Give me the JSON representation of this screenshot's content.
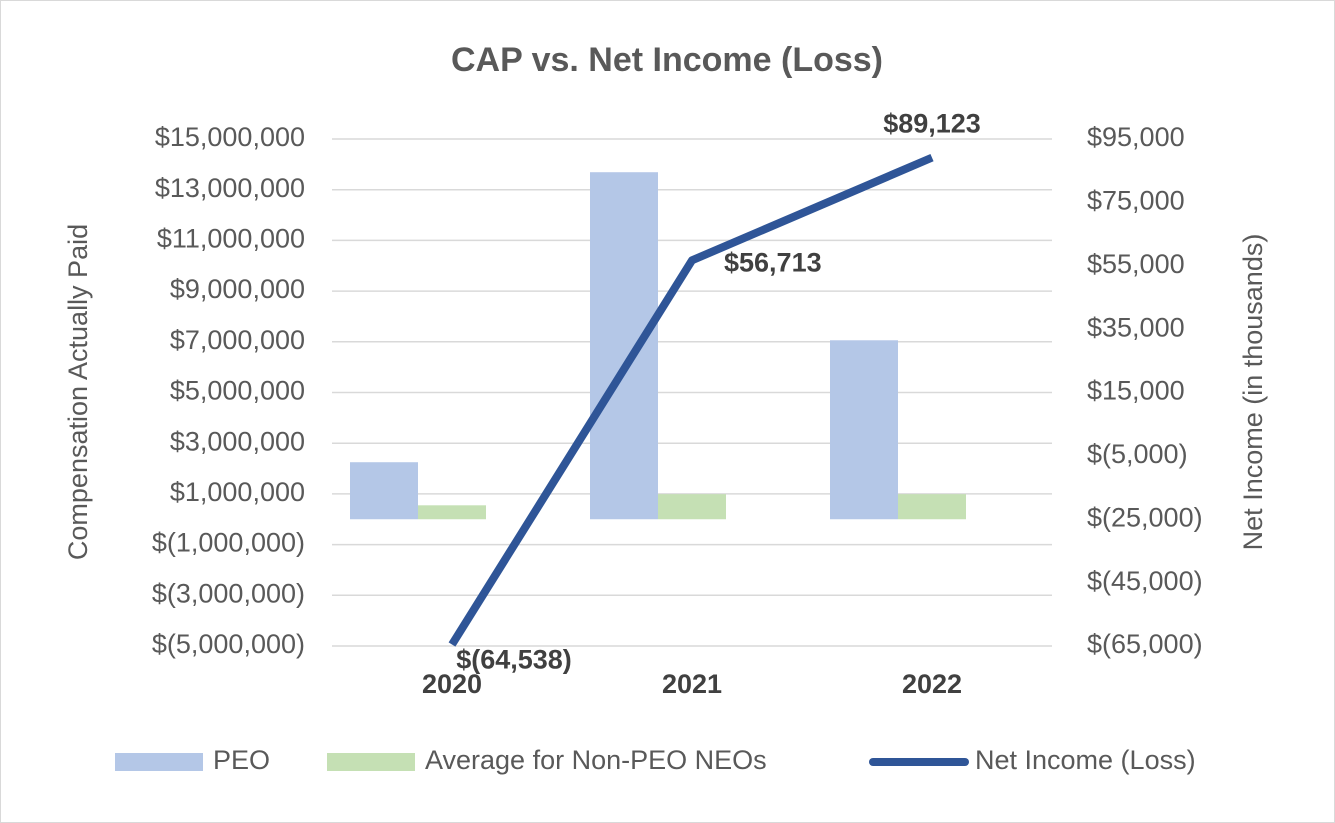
{
  "chart_data": {
    "type": "bar",
    "title": "CAP vs. Net Income (Loss)",
    "y_label": "Compensation Actually Paid",
    "y2_label": "Net Income (in thousands)",
    "categories": [
      "2020",
      "2021",
      "2022"
    ],
    "series": [
      {
        "name": "PEO",
        "color": "#b4c7e7",
        "values": [
          2250000,
          13690000,
          7060000
        ]
      },
      {
        "name": "Average for Non-PEO NEOs",
        "color": "#c5e0b4",
        "values": [
          550000,
          990000,
          990000
        ]
      },
      {
        "name": "Net Income (Loss)",
        "type": "line",
        "axis": "y2",
        "color": "#2f5597",
        "values": [
          -64538,
          56713,
          89123
        ],
        "value_labels": [
          "$(64,538)",
          "$56,713",
          "$89,123"
        ]
      }
    ],
    "ylim": [
      -5000000,
      15000000
    ],
    "yticks": [
      {
        "value": -5000000,
        "label": "$(5,000,000)"
      },
      {
        "value": -3000000,
        "label": "$(3,000,000)"
      },
      {
        "value": -1000000,
        "label": "$(1,000,000)"
      },
      {
        "value": 1000000,
        "label": "$1,000,000"
      },
      {
        "value": 3000000,
        "label": "$3,000,000"
      },
      {
        "value": 5000000,
        "label": "$5,000,000"
      },
      {
        "value": 7000000,
        "label": "$7,000,000"
      },
      {
        "value": 9000000,
        "label": "$9,000,000"
      },
      {
        "value": 11000000,
        "label": "$11,000,000"
      },
      {
        "value": 13000000,
        "label": "$13,000,000"
      },
      {
        "value": 15000000,
        "label": "$15,000,000"
      }
    ],
    "y2lim": [
      -65000,
      95000
    ],
    "y2ticks": [
      {
        "value": -65000,
        "label": "$(65,000)"
      },
      {
        "value": -45000,
        "label": "$(45,000)"
      },
      {
        "value": -25000,
        "label": "$(25,000)"
      },
      {
        "value": -5000,
        "label": "$(5,000)"
      },
      {
        "value": 15000,
        "label": "$15,000"
      },
      {
        "value": 35000,
        "label": "$35,000"
      },
      {
        "value": 55000,
        "label": "$55,000"
      },
      {
        "value": 75000,
        "label": "$75,000"
      },
      {
        "value": 95000,
        "label": "$95,000"
      }
    ],
    "grid": true,
    "legend": "bottom"
  }
}
